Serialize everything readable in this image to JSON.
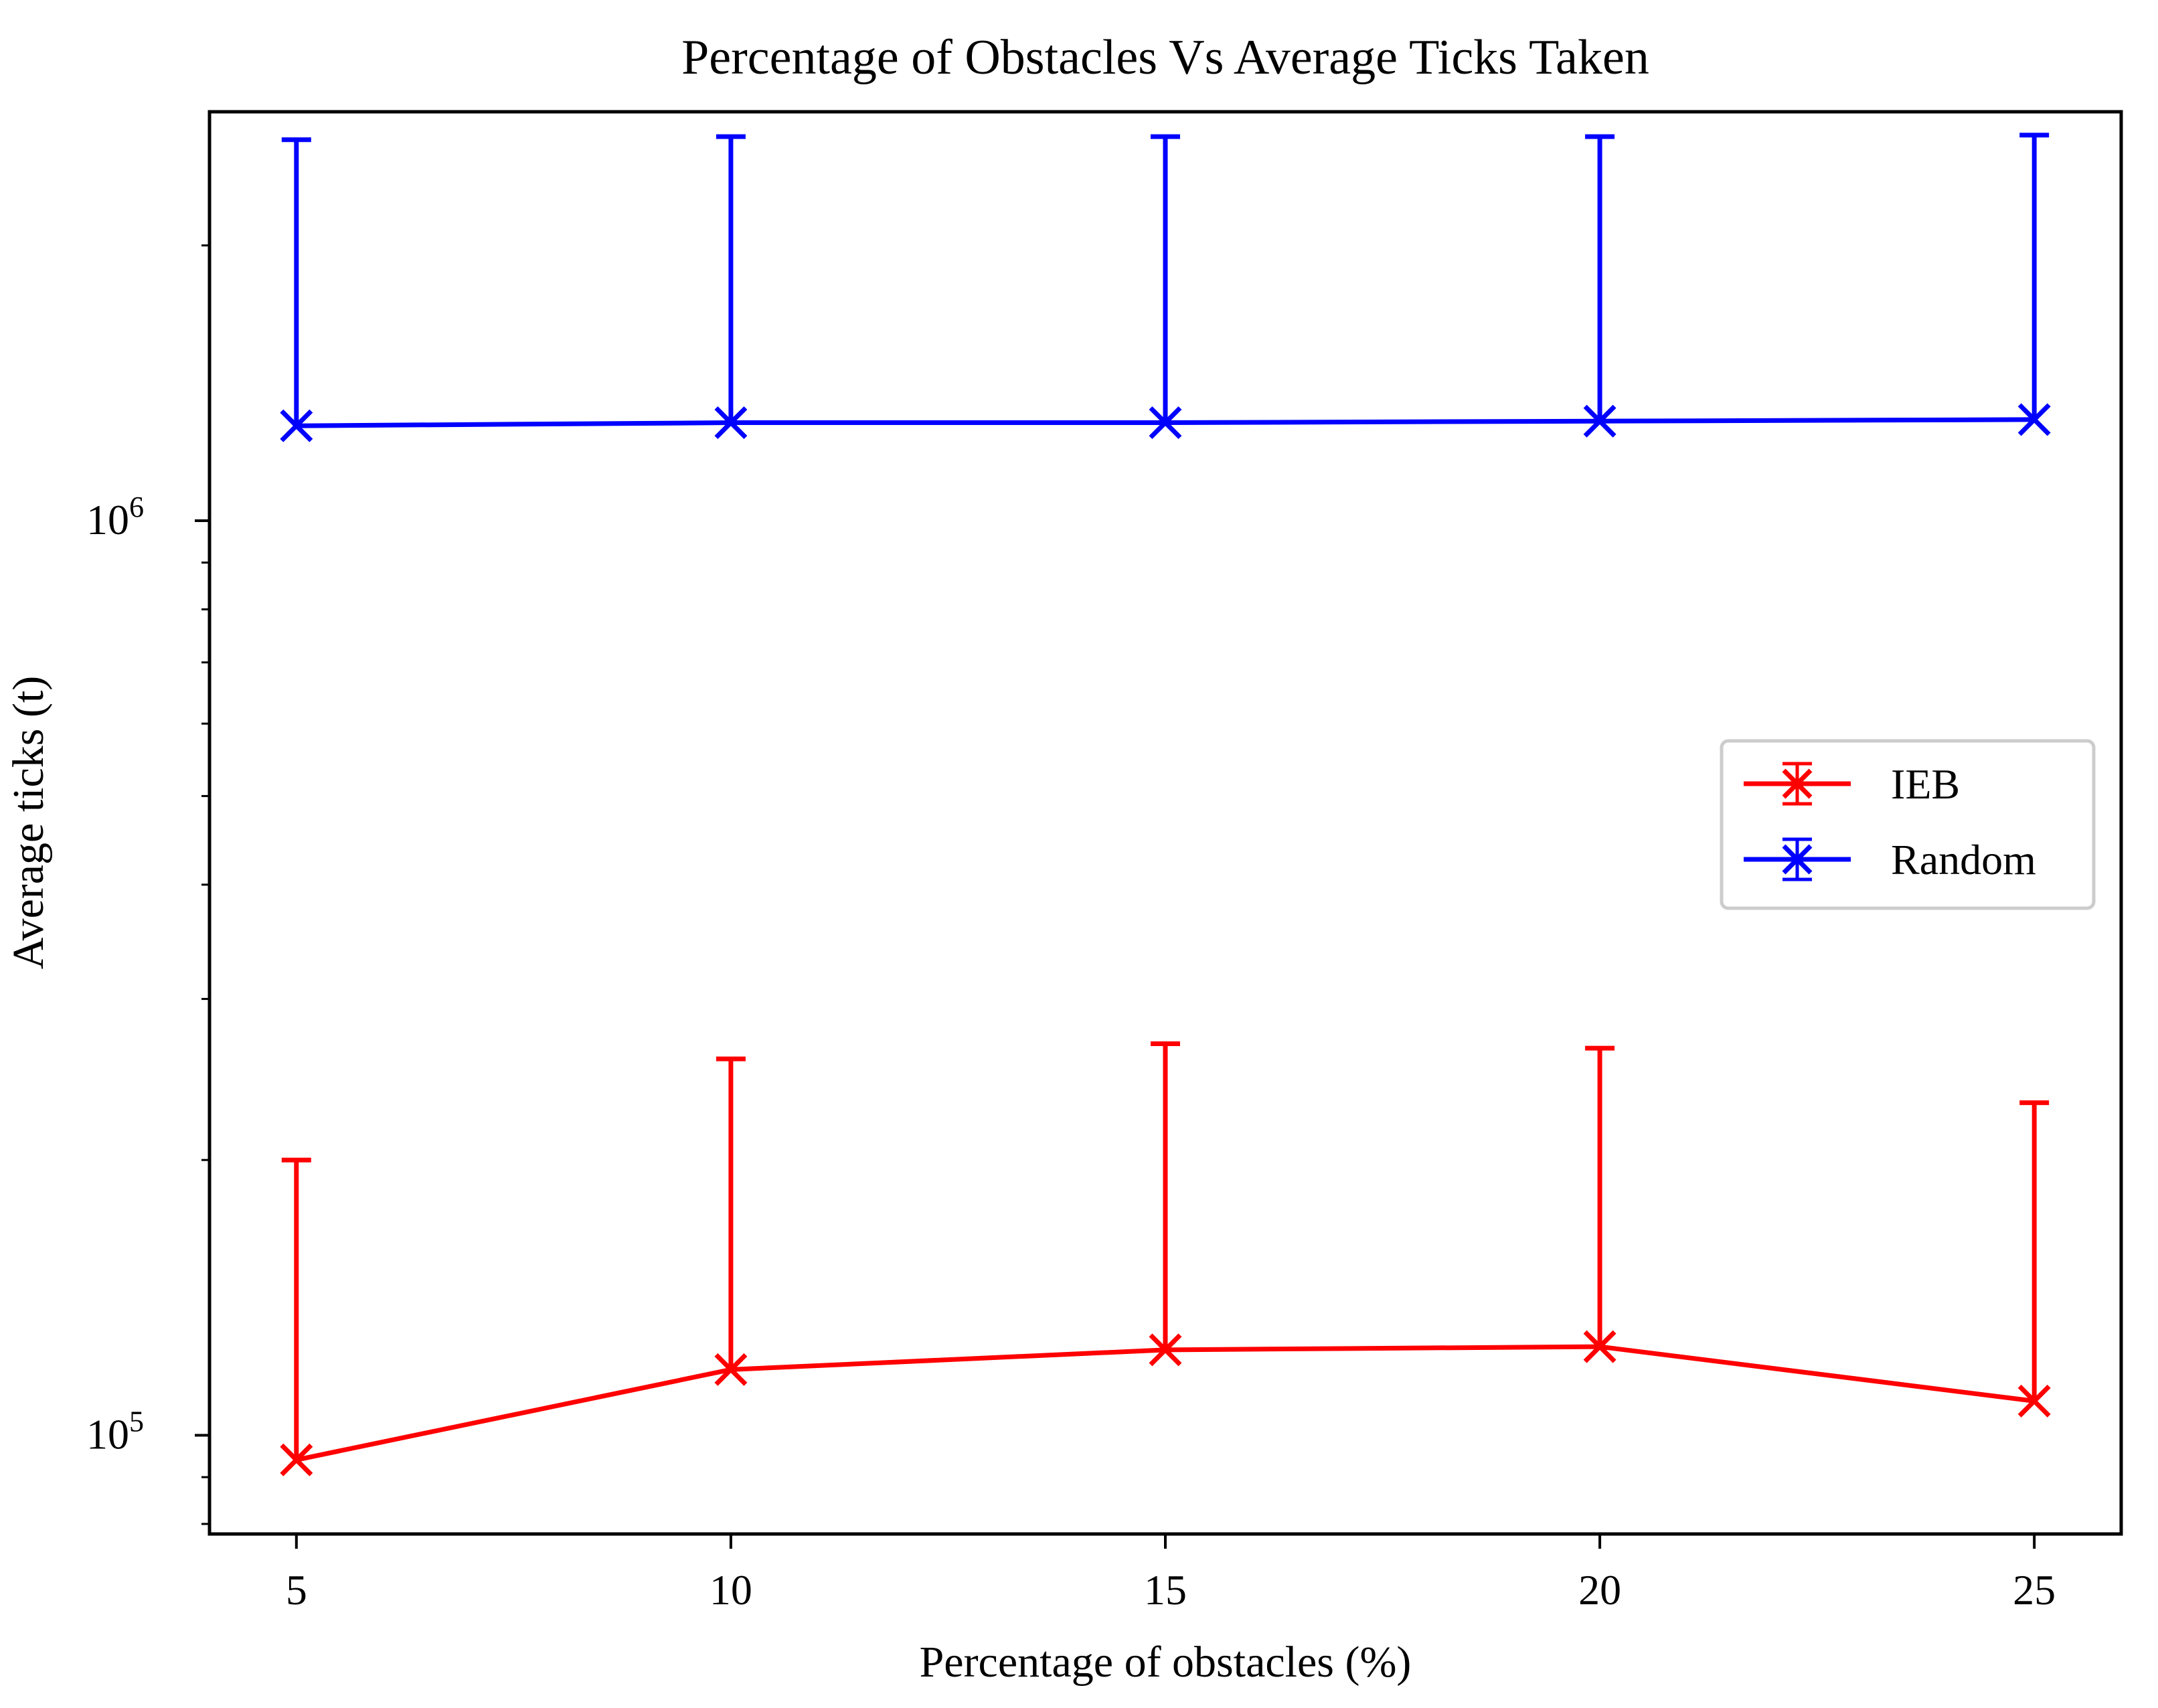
{
  "chart_data": {
    "type": "line",
    "title": "Percentage of Obstacles Vs Average Ticks Taken",
    "xlabel": "Percentage of obstacles (%)",
    "ylabel": "Average ticks (t)",
    "yscale": "log",
    "xlim": [
      4,
      26
    ],
    "ylim": [
      78000,
      2800000
    ],
    "x": [
      5,
      10,
      15,
      20,
      25
    ],
    "xticks": [
      "5",
      "10",
      "15",
      "20",
      "25"
    ],
    "yticks": [
      {
        "value": 100000,
        "base": "10",
        "exp": "5"
      },
      {
        "value": 1000000,
        "base": "10",
        "exp": "6"
      }
    ],
    "grid": false,
    "legend_position": "center-right",
    "series": [
      {
        "name": "IEB",
        "color": "#ff0000",
        "marker": "x",
        "values": [
          94000,
          118000,
          124000,
          125000,
          109000
        ],
        "error_upper": [
          200000,
          258000,
          268000,
          265000,
          231000
        ]
      },
      {
        "name": "Random",
        "color": "#0000ff",
        "marker": "x",
        "values": [
          1270000,
          1280000,
          1280000,
          1285000,
          1290000
        ],
        "error_upper": [
          2610000,
          2630000,
          2630000,
          2630000,
          2640000
        ]
      }
    ]
  }
}
